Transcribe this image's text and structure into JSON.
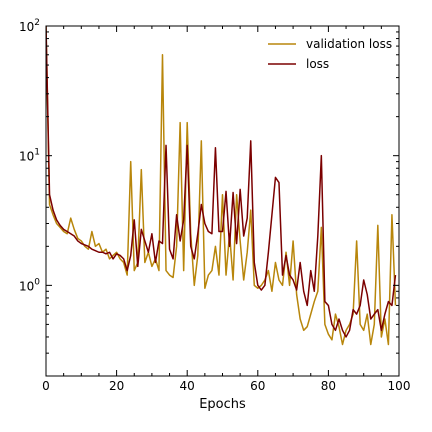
{
  "chart_data": {
    "type": "line",
    "title": "",
    "xlabel": "Epochs",
    "ylabel": "",
    "xlim": [
      0,
      100
    ],
    "ylim": [
      0.2,
      100
    ],
    "yscale": "log",
    "grid": false,
    "legend_position": "top-right",
    "x_ticks": [
      {
        "value": 0,
        "label": "0"
      },
      {
        "value": 20,
        "label": "20"
      },
      {
        "value": 40,
        "label": "40"
      },
      {
        "value": 60,
        "label": "60"
      },
      {
        "value": 80,
        "label": "80"
      },
      {
        "value": 100,
        "label": "100"
      }
    ],
    "y_ticks": [
      {
        "value": 1,
        "base": "10",
        "exp": "0"
      },
      {
        "value": 10,
        "base": "10",
        "exp": "1"
      },
      {
        "value": 100,
        "base": "10",
        "exp": "2"
      }
    ],
    "series": [
      {
        "name": "validation loss",
        "color": "#b8860b",
        "values": [
          [
            0,
            100
          ],
          [
            1,
            4.2
          ],
          [
            2,
            3.5
          ],
          [
            3,
            3.0
          ],
          [
            4,
            2.8
          ],
          [
            5,
            2.6
          ],
          [
            6,
            2.5
          ],
          [
            7,
            3.3
          ],
          [
            8,
            2.7
          ],
          [
            9,
            2.3
          ],
          [
            10,
            2.2
          ],
          [
            11,
            2.0
          ],
          [
            12,
            1.9
          ],
          [
            13,
            2.6
          ],
          [
            14,
            2.0
          ],
          [
            15,
            2.1
          ],
          [
            16,
            1.8
          ],
          [
            17,
            1.9
          ],
          [
            18,
            1.6
          ],
          [
            19,
            1.7
          ],
          [
            20,
            1.8
          ],
          [
            21,
            1.6
          ],
          [
            22,
            1.5
          ],
          [
            23,
            1.2
          ],
          [
            24,
            9.0
          ],
          [
            25,
            1.3
          ],
          [
            26,
            1.5
          ],
          [
            27,
            7.8
          ],
          [
            28,
            1.5
          ],
          [
            29,
            1.8
          ],
          [
            30,
            1.4
          ],
          [
            31,
            1.6
          ],
          [
            32,
            1.3
          ],
          [
            33,
            60.0
          ],
          [
            34,
            1.3
          ],
          [
            35,
            1.2
          ],
          [
            36,
            1.15
          ],
          [
            37,
            2.0
          ],
          [
            38,
            18.0
          ],
          [
            39,
            1.3
          ],
          [
            40,
            18.0
          ],
          [
            41,
            2.5
          ],
          [
            42,
            1.0
          ],
          [
            43,
            1.7
          ],
          [
            44,
            13.0
          ],
          [
            45,
            0.95
          ],
          [
            46,
            1.2
          ],
          [
            47,
            1.3
          ],
          [
            48,
            2.0
          ],
          [
            49,
            1.2
          ],
          [
            50,
            5.0
          ],
          [
            51,
            1.2
          ],
          [
            52,
            2.5
          ],
          [
            53,
            1.1
          ],
          [
            54,
            5.0
          ],
          [
            55,
            2.2
          ],
          [
            56,
            1.1
          ],
          [
            57,
            1.8
          ],
          [
            58,
            3.8
          ],
          [
            59,
            1.0
          ],
          [
            60,
            0.95
          ],
          [
            61,
            1.0
          ],
          [
            62,
            1.1
          ],
          [
            63,
            1.3
          ],
          [
            64,
            0.9
          ],
          [
            65,
            1.5
          ],
          [
            66,
            1.1
          ],
          [
            67,
            1.0
          ],
          [
            68,
            1.8
          ],
          [
            69,
            1.0
          ],
          [
            70,
            2.2
          ],
          [
            71,
            0.85
          ],
          [
            72,
            0.55
          ],
          [
            73,
            0.45
          ],
          [
            74,
            0.48
          ],
          [
            75,
            0.6
          ],
          [
            76,
            0.75
          ],
          [
            77,
            0.9
          ],
          [
            78,
            2.8
          ],
          [
            79,
            0.5
          ],
          [
            80,
            0.42
          ],
          [
            81,
            0.38
          ],
          [
            82,
            0.6
          ],
          [
            83,
            0.48
          ],
          [
            84,
            0.35
          ],
          [
            85,
            0.45
          ],
          [
            86,
            0.5
          ],
          [
            87,
            0.6
          ],
          [
            88,
            2.2
          ],
          [
            89,
            0.5
          ],
          [
            90,
            0.45
          ],
          [
            91,
            0.6
          ],
          [
            92,
            0.35
          ],
          [
            93,
            0.5
          ],
          [
            94,
            2.9
          ],
          [
            95,
            0.4
          ],
          [
            96,
            0.55
          ],
          [
            97,
            0.35
          ],
          [
            98,
            3.5
          ],
          [
            99,
            0.7
          ]
        ]
      },
      {
        "name": "loss",
        "color": "#7b0000",
        "values": [
          [
            0,
            100
          ],
          [
            1,
            5.0
          ],
          [
            2,
            3.8
          ],
          [
            3,
            3.2
          ],
          [
            4,
            2.9
          ],
          [
            5,
            2.7
          ],
          [
            6,
            2.6
          ],
          [
            7,
            2.5
          ],
          [
            8,
            2.4
          ],
          [
            9,
            2.2
          ],
          [
            10,
            2.1
          ],
          [
            11,
            2.05
          ],
          [
            12,
            2.0
          ],
          [
            13,
            1.9
          ],
          [
            14,
            1.85
          ],
          [
            15,
            1.8
          ],
          [
            16,
            1.8
          ],
          [
            17,
            1.75
          ],
          [
            18,
            1.8
          ],
          [
            19,
            1.6
          ],
          [
            20,
            1.75
          ],
          [
            21,
            1.7
          ],
          [
            22,
            1.6
          ],
          [
            23,
            1.3
          ],
          [
            24,
            1.7
          ],
          [
            25,
            3.2
          ],
          [
            26,
            1.4
          ],
          [
            27,
            2.7
          ],
          [
            28,
            2.2
          ],
          [
            29,
            1.8
          ],
          [
            30,
            2.5
          ],
          [
            31,
            1.5
          ],
          [
            32,
            2.2
          ],
          [
            33,
            2.1
          ],
          [
            34,
            12.0
          ],
          [
            35,
            1.9
          ],
          [
            36,
            1.6
          ],
          [
            37,
            3.5
          ],
          [
            38,
            2.2
          ],
          [
            39,
            3.2
          ],
          [
            40,
            12.0
          ],
          [
            41,
            2.0
          ],
          [
            42,
            1.6
          ],
          [
            43,
            2.5
          ],
          [
            44,
            4.2
          ],
          [
            45,
            3.0
          ],
          [
            46,
            2.6
          ],
          [
            47,
            2.5
          ],
          [
            48,
            11.5
          ],
          [
            49,
            2.6
          ],
          [
            50,
            2.6
          ],
          [
            51,
            5.3
          ],
          [
            52,
            2.0
          ],
          [
            53,
            5.2
          ],
          [
            54,
            2.1
          ],
          [
            55,
            5.5
          ],
          [
            56,
            2.4
          ],
          [
            57,
            3.3
          ],
          [
            58,
            13.0
          ],
          [
            59,
            1.5
          ],
          [
            60,
            1.0
          ],
          [
            61,
            0.92
          ],
          [
            62,
            1.0
          ],
          [
            63,
            1.8
          ],
          [
            64,
            3.5
          ],
          [
            65,
            6.8
          ],
          [
            66,
            6.2
          ],
          [
            67,
            1.2
          ],
          [
            68,
            1.7
          ],
          [
            69,
            1.2
          ],
          [
            70,
            1.1
          ],
          [
            71,
            0.92
          ],
          [
            72,
            1.5
          ],
          [
            73,
            0.9
          ],
          [
            74,
            0.7
          ],
          [
            75,
            1.3
          ],
          [
            76,
            0.9
          ],
          [
            77,
            2.4
          ],
          [
            78,
            10.0
          ],
          [
            79,
            0.75
          ],
          [
            80,
            0.7
          ],
          [
            81,
            0.5
          ],
          [
            82,
            0.45
          ],
          [
            83,
            0.55
          ],
          [
            84,
            0.45
          ],
          [
            85,
            0.4
          ],
          [
            86,
            0.45
          ],
          [
            87,
            0.65
          ],
          [
            88,
            0.6
          ],
          [
            89,
            0.7
          ],
          [
            90,
            1.1
          ],
          [
            91,
            0.85
          ],
          [
            92,
            0.55
          ],
          [
            93,
            0.6
          ],
          [
            94,
            0.65
          ],
          [
            95,
            0.45
          ],
          [
            96,
            0.6
          ],
          [
            97,
            0.75
          ],
          [
            98,
            0.7
          ],
          [
            99,
            1.2
          ]
        ]
      }
    ]
  }
}
